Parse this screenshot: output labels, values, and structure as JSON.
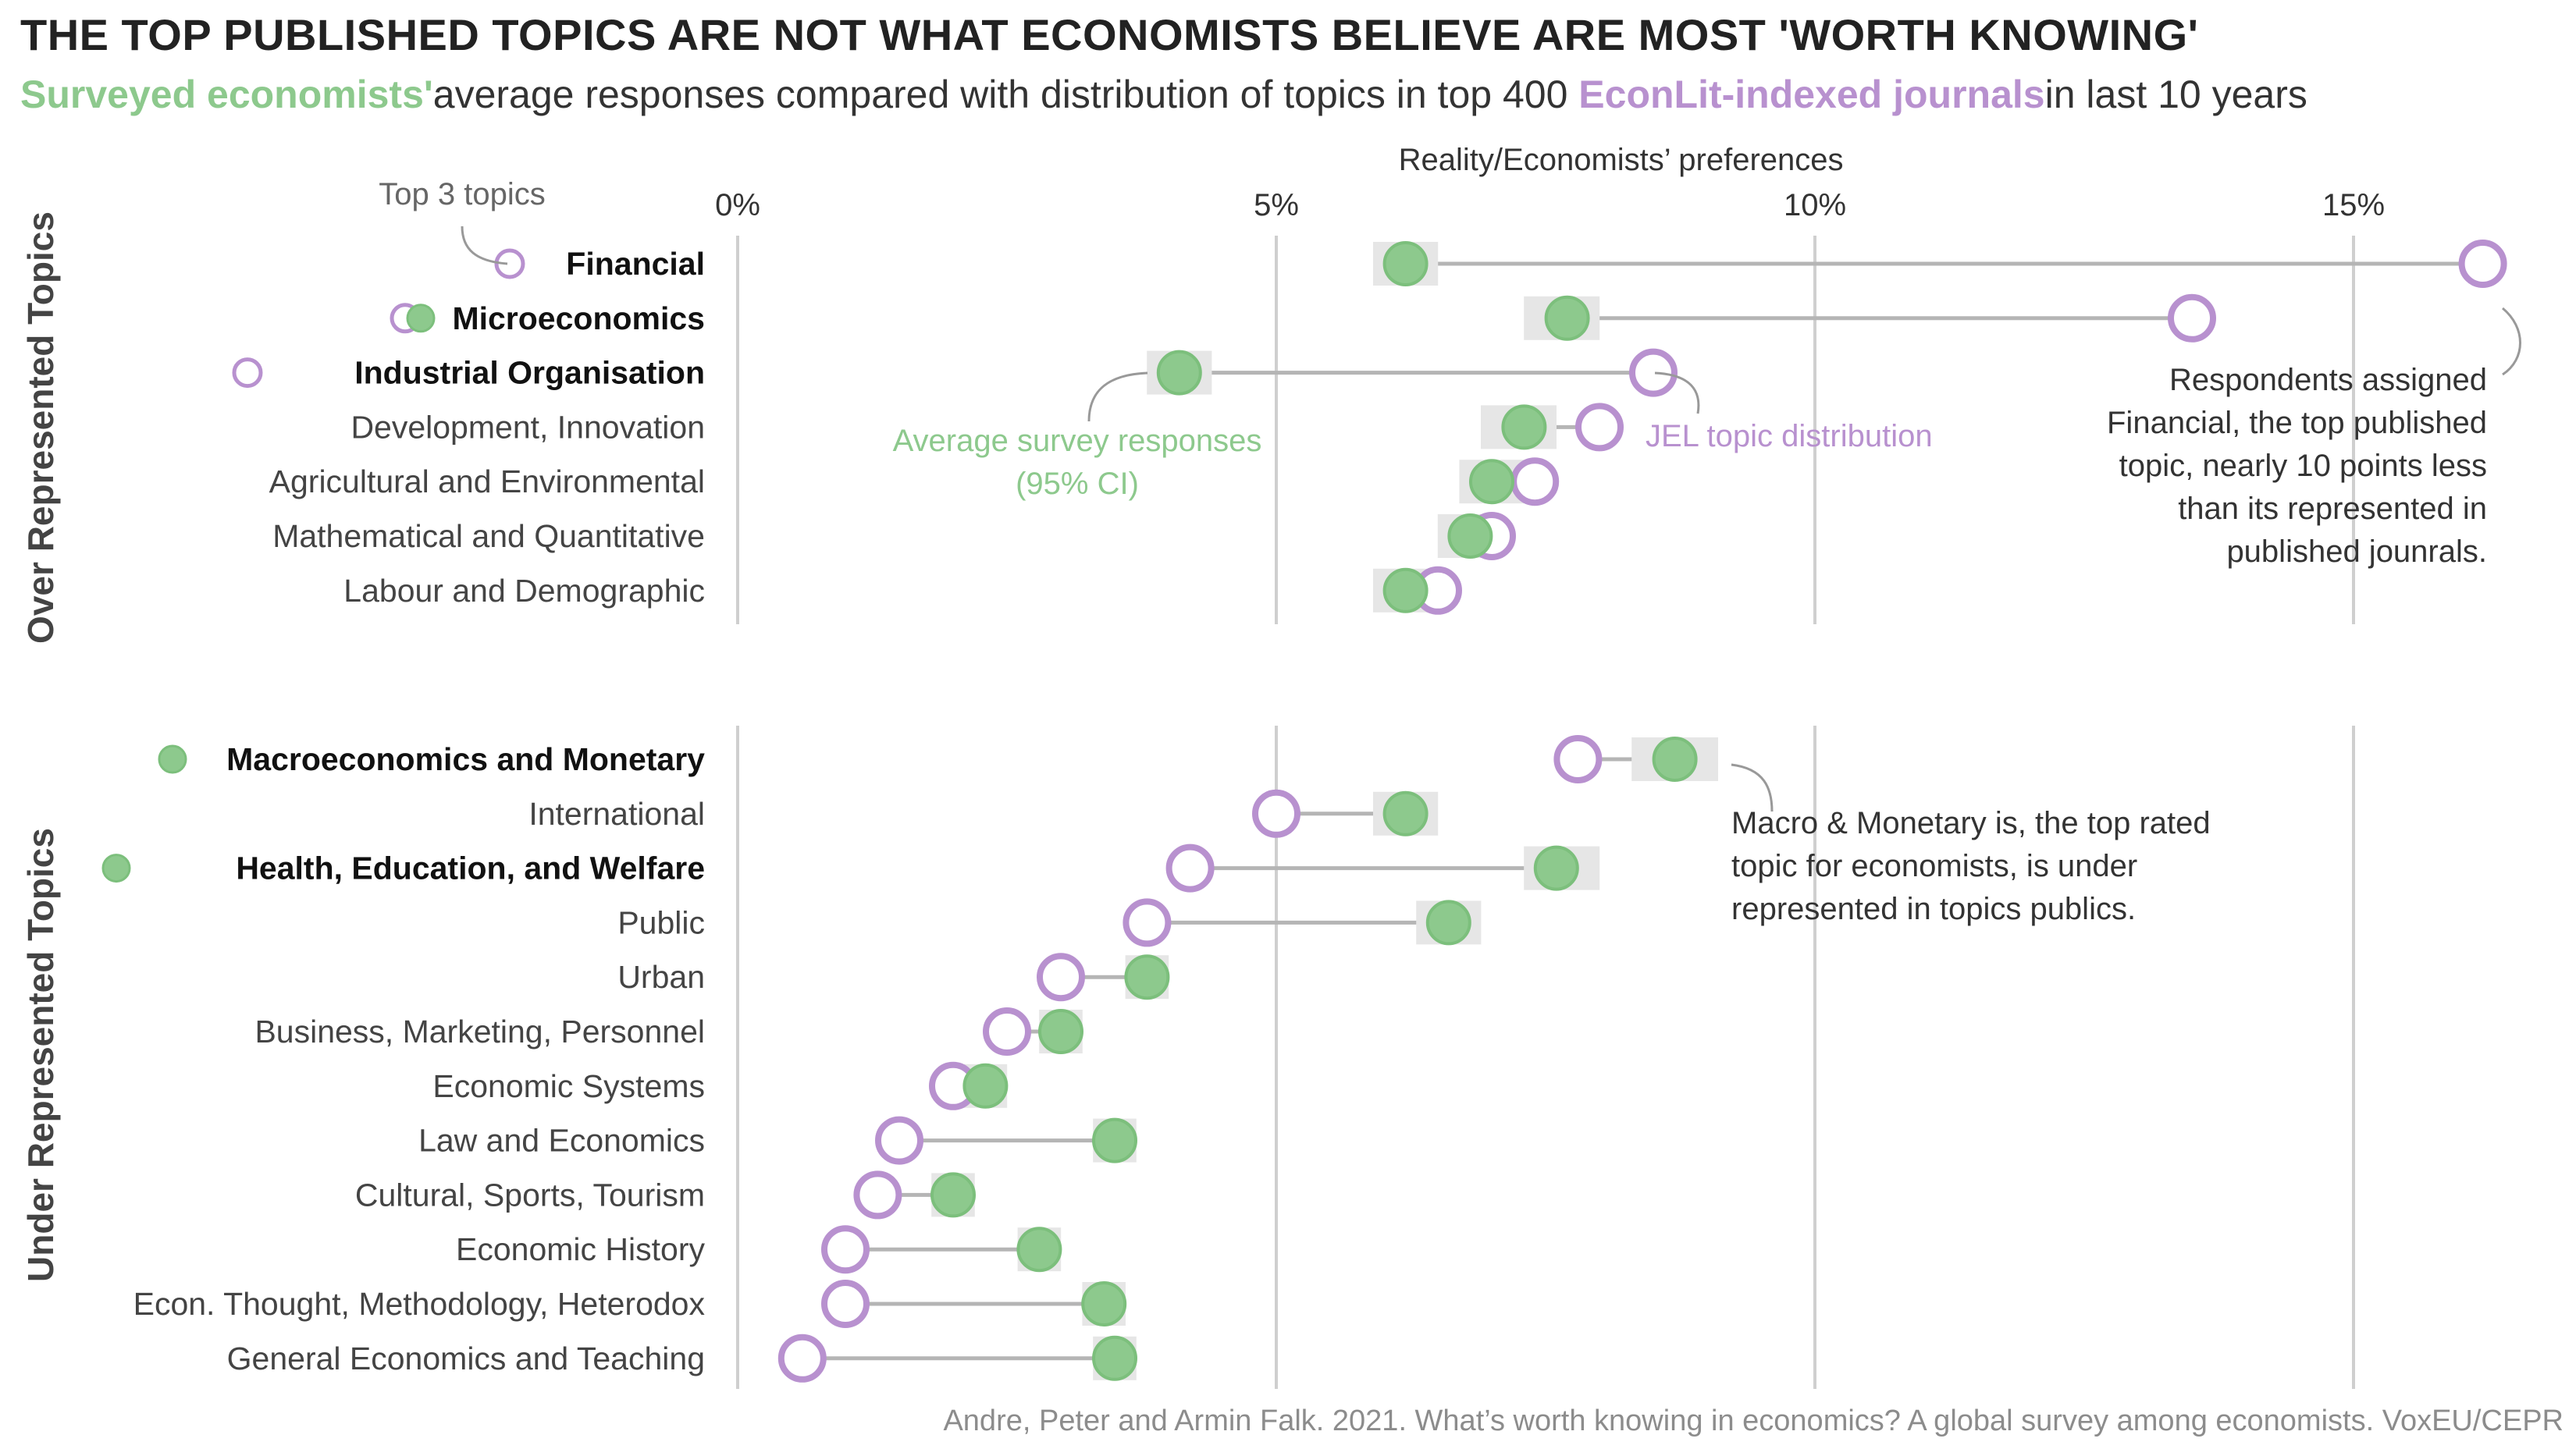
{
  "title": "THE TOP PUBLISHED TOPICS ARE NOT WHAT ECONOMISTS BELIEVE ARE MOST 'WORTH KNOWING'",
  "subtitle": {
    "green_part": "Surveyed economists'",
    "part2": "average responses compared with distribution of topics in top 400",
    "purple_part": "EconLit-indexed journals",
    "part4": "in last 10 years"
  },
  "colors": {
    "survey": "#8dc98d",
    "survey_stroke": "#7cbf7c",
    "jel": "#b891cf",
    "ci": "#e6e6e6",
    "line": "#b5b5b5",
    "grid": "#cfcfcf"
  },
  "chart_data": {
    "type": "dumbbell",
    "axis_title": "Reality/Economists’ preferences",
    "xlim": [
      0,
      16
    ],
    "ticks": [
      {
        "value": 0,
        "label": "0%"
      },
      {
        "value": 5,
        "label": "5%"
      },
      {
        "value": 10,
        "label": "10%"
      },
      {
        "value": 15,
        "label": "15%"
      }
    ],
    "series": [
      {
        "name": "Average survey responses (95% CI)",
        "marker": "filled-circle",
        "label_line1": "Average survey responses",
        "label_line2": "(95% CI)"
      },
      {
        "name": "JEL topic distribution",
        "marker": "open-circle"
      }
    ],
    "panels": [
      {
        "name": "Over Represented Topics",
        "rows": [
          {
            "topic": "Financial",
            "survey": 6.2,
            "ci": [
              6.0,
              6.4
            ],
            "jel": 16.2,
            "bold": true,
            "marker": "jel"
          },
          {
            "topic": "Microeconomics",
            "survey": 7.7,
            "ci": [
              7.4,
              7.9
            ],
            "jel": 13.5,
            "bold": true,
            "marker": "both"
          },
          {
            "topic": "Industrial Organisation",
            "survey": 4.1,
            "ci": [
              3.9,
              4.3
            ],
            "jel": 8.5,
            "bold": true,
            "marker": "jel"
          },
          {
            "topic": "Development, Innovation",
            "survey": 7.3,
            "ci": [
              7.0,
              7.5
            ],
            "jel": 8.0,
            "bold": false
          },
          {
            "topic": "Agricultural and Environmental",
            "survey": 7.0,
            "ci": [
              6.8,
              7.2
            ],
            "jel": 7.4,
            "bold": false
          },
          {
            "topic": "Mathematical and Quantitative",
            "survey": 6.8,
            "ci": [
              6.6,
              7.0
            ],
            "jel": 7.0,
            "bold": false
          },
          {
            "topic": "Labour and Demographic",
            "survey": 6.2,
            "ci": [
              6.0,
              6.5
            ],
            "jel": 6.5,
            "bold": false
          }
        ]
      },
      {
        "name": "Under Represented Topics",
        "rows": [
          {
            "topic": "Macroeconomics and Monetary",
            "survey": 8.7,
            "ci": [
              8.4,
              9.0
            ],
            "jel": 7.8,
            "bold": true,
            "marker": "survey"
          },
          {
            "topic": "International",
            "survey": 6.2,
            "ci": [
              6.0,
              6.4
            ],
            "jel": 5.0,
            "bold": false
          },
          {
            "topic": "Health, Education, and Welfare",
            "survey": 7.6,
            "ci": [
              7.4,
              7.9
            ],
            "jel": 4.2,
            "bold": true,
            "marker": "survey"
          },
          {
            "topic": "Public",
            "survey": 6.6,
            "ci": [
              6.4,
              6.8
            ],
            "jel": 3.8,
            "bold": false
          },
          {
            "topic": "Urban",
            "survey": 3.8,
            "ci": [
              3.7,
              3.9
            ],
            "jel": 3.0,
            "bold": false
          },
          {
            "topic": "Business, Marketing, Personnel",
            "survey": 3.0,
            "ci": [
              2.9,
              3.1
            ],
            "jel": 2.5,
            "bold": false
          },
          {
            "topic": "Economic Systems",
            "survey": 2.3,
            "ci": [
              2.2,
              2.4
            ],
            "jel": 2.0,
            "bold": false
          },
          {
            "topic": "Law and Economics",
            "survey": 3.5,
            "ci": [
              3.4,
              3.6
            ],
            "jel": 1.5,
            "bold": false
          },
          {
            "topic": "Cultural, Sports, Tourism",
            "survey": 2.0,
            "ci": [
              1.9,
              2.1
            ],
            "jel": 1.3,
            "bold": false
          },
          {
            "topic": "Economic History",
            "survey": 2.8,
            "ci": [
              2.7,
              2.9
            ],
            "jel": 1.0,
            "bold": false
          },
          {
            "topic": "Econ. Thought, Methodology, Heterodox",
            "survey": 3.4,
            "ci": [
              3.3,
              3.5
            ],
            "jel": 1.0,
            "bold": false
          },
          {
            "topic": "General Economics and Teaching",
            "survey": 3.5,
            "ci": [
              3.4,
              3.6
            ],
            "jel": 0.6,
            "bold": false
          }
        ]
      }
    ],
    "annotations": {
      "top3": "Top 3 topics",
      "jel_label": "JEL topic distribution",
      "financial_note": [
        "Respondents assigned",
        "Financial, the top published",
        "topic, nearly 10 points less",
        "than its represented in",
        "published jounrals."
      ],
      "macro_note": [
        "Macro & Monetary is, the top rated",
        "topic for economists, is under",
        "represented in topics publics."
      ]
    }
  },
  "source": "Andre, Peter and Armin Falk. 2021. What’s worth knowing in economics? A global survey among economists. VoxEU/CEPR"
}
